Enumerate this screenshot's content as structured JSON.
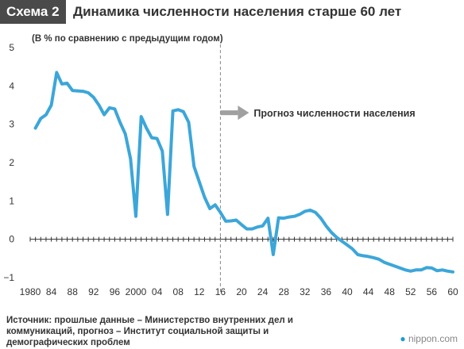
{
  "header": {
    "badge": "Схема 2",
    "title": "Динамика численности населения старше 60 лет"
  },
  "source": "Источник: прошлые данные – Министерство внутренних дел и коммуникаций, прогноз – Институт социальной защиты и демографических проблем",
  "logo": {
    "prefix": "nippon",
    "suffix": ".com"
  },
  "colors": {
    "line": "#3ca6d9",
    "badge": "#4a4a4a",
    "arrow": "#a0a0a0"
  },
  "chart_data": {
    "type": "line",
    "ylabel": "(В % по сравнению с предыдущим годом)",
    "ylim": [
      -1,
      5
    ],
    "yticks": [
      -1,
      0,
      1,
      2,
      3,
      4,
      5
    ],
    "xlim": [
      1980,
      2060
    ],
    "xtick_values": [
      1980,
      1984,
      1988,
      1992,
      1996,
      2000,
      2004,
      2008,
      2012,
      2016,
      2020,
      2024,
      2028,
      2032,
      2036,
      2040,
      2044,
      2048,
      2052,
      2056,
      2060
    ],
    "xtick_labels": [
      "1980",
      "84",
      "88",
      "92",
      "96",
      "2000",
      "04",
      "08",
      "12",
      "16",
      "20",
      "24",
      "28",
      "32",
      "36",
      "40",
      "44",
      "48",
      "52",
      "56",
      "60"
    ],
    "grid": false,
    "forecast_start": 2016,
    "annotation": "Прогноз численности населения",
    "series": [
      {
        "x": [
          1981,
          1982,
          1983,
          1984,
          1985,
          1986,
          1987,
          1988,
          1989,
          1990,
          1991,
          1992,
          1993,
          1994,
          1995,
          1996,
          1997,
          1998,
          1999,
          2000,
          2001,
          2002,
          2003,
          2004,
          2005,
          2006,
          2007,
          2008,
          2009,
          2010,
          2011,
          2012,
          2013,
          2014,
          2015,
          2016,
          2017,
          2018,
          2019,
          2020,
          2021,
          2022,
          2023,
          2024,
          2025,
          2026,
          2027,
          2028,
          2029,
          2030,
          2031,
          2032,
          2033,
          2034,
          2035,
          2036,
          2037,
          2038,
          2039,
          2040,
          2041,
          2042,
          2043,
          2044,
          2045,
          2046,
          2047,
          2048,
          2049,
          2050,
          2051,
          2052,
          2053,
          2054,
          2055,
          2056,
          2057,
          2058,
          2059,
          2060
        ],
        "values": [
          2.9,
          3.15,
          3.25,
          3.5,
          4.35,
          4.05,
          4.07,
          3.88,
          3.87,
          3.86,
          3.82,
          3.7,
          3.5,
          3.25,
          3.43,
          3.4,
          3.05,
          2.75,
          2.1,
          0.6,
          3.2,
          2.9,
          2.65,
          2.63,
          2.3,
          0.65,
          3.35,
          3.38,
          3.33,
          3.05,
          1.9,
          1.5,
          1.1,
          0.8,
          0.9,
          0.7,
          0.47,
          0.48,
          0.5,
          0.38,
          0.27,
          0.27,
          0.32,
          0.35,
          0.55,
          -0.4,
          0.56,
          0.55,
          0.58,
          0.6,
          0.65,
          0.73,
          0.76,
          0.7,
          0.55,
          0.35,
          0.18,
          0.05,
          -0.05,
          -0.15,
          -0.25,
          -0.4,
          -0.43,
          -0.45,
          -0.48,
          -0.52,
          -0.6,
          -0.65,
          -0.7,
          -0.75,
          -0.8,
          -0.83,
          -0.8,
          -0.8,
          -0.74,
          -0.75,
          -0.82,
          -0.8,
          -0.83,
          -0.85
        ]
      }
    ]
  }
}
